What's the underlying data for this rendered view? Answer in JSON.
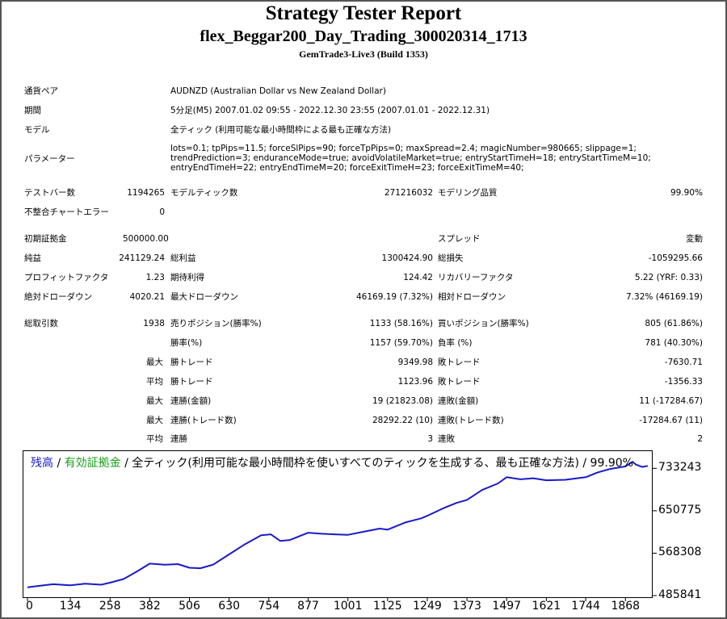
{
  "header": {
    "title": "Strategy Tester Report",
    "subtitle": "flex_Beggar200_Day_Trading_300020314_1713",
    "server": "GemTrade3-Live3 (Build 1353)"
  },
  "info": {
    "pair_label": "通貨ペア",
    "pair_value": "AUDNZD (Australian Dollar vs New Zealand Dollar)",
    "period_label": "期間",
    "period_value": "5分足(M5) 2007.01.02 09:55 - 2022.12.30 23:55 (2007.01.01 - 2022.12.31)",
    "model_label": "モデル",
    "model_value": "全ティック (利用可能な最小時間枠による最も正確な方法)",
    "params_label": "パラメーター",
    "params_value": "lots=0.1; tpPips=11.5; forceSlPips=90; forceTpPips=0; maxSpread=2.4; magicNumber=980665; slippage=1; trendPrediction=3; enduranceMode=true; avoidVolatileMarket=true; entryStartTimeH=18; entryStartTimeM=10; entryEndTimeH=22; entryEndTimeM=20; forceExitTimeH=23; forceExitTimeM=40;"
  },
  "stats": {
    "bars_label": "テストバー数",
    "bars_value": "1194265",
    "ticks_label": "モデルティック数",
    "ticks_value": "271216032",
    "quality_label": "モデリング品質",
    "quality_value": "99.90%",
    "mismatch_label": "不整合チャートエラー",
    "mismatch_value": "0",
    "deposit_label": "初期証拠金",
    "deposit_value": "500000.00",
    "spread_label": "スプレッド",
    "spread_value": "変動",
    "net_label": "純益",
    "net_value": "241129.24",
    "gross_profit_label": "総利益",
    "gross_profit_value": "1300424.90",
    "gross_loss_label": "総損失",
    "gross_loss_value": "-1059295.66",
    "pf_label": "プロフィットファクタ",
    "pf_value": "1.23",
    "expected_label": "期待利得",
    "expected_value": "124.42",
    "recovery_label": "リカバリーファクタ",
    "recovery_value": "5.22 (YRF: 0.33)",
    "abs_dd_label": "絶対ドローダウン",
    "abs_dd_value": "4020.21",
    "max_dd_label": "最大ドローダウン",
    "max_dd_value": "46169.19 (7.32%)",
    "rel_dd_label": "相対ドローダウン",
    "rel_dd_value": "7.32% (46169.19)",
    "total_trades_label": "総取引数",
    "total_trades_value": "1938",
    "short_label": "売りポジション(勝率%)",
    "short_value": "1133 (58.16%)",
    "long_label": "買いポジション(勝率%)",
    "long_value": "805 (61.86%)",
    "win_rate_label": "勝率(%)",
    "win_rate_value": "1157 (59.70%)",
    "loss_rate_label": "負率 (%)",
    "loss_rate_value": "781 (40.30%)",
    "max_prefix": "最大",
    "avg_prefix": "平均",
    "largest_win_label": "勝トレード",
    "largest_win_value": "9349.98",
    "largest_loss_label": "敗トレード",
    "largest_loss_value": "-7630.71",
    "avg_win_label": "勝トレード",
    "avg_win_value": "1123.96",
    "avg_loss_label": "敗トレード",
    "avg_loss_value": "-1356.33",
    "consec_wins_amt_label": "連勝(金額)",
    "consec_wins_amt_value": "19 (21823.08)",
    "consec_losses_amt_label": "連敗(金額)",
    "consec_losses_amt_value": "11 (-17284.67)",
    "consec_wins_cnt_label": "連勝(トレード数)",
    "consec_wins_cnt_value": "28292.22 (10)",
    "consec_losses_cnt_label": "連敗(トレード数)",
    "consec_losses_cnt_value": "-17284.67 (11)",
    "avg_consec_wins_label": "連勝",
    "avg_consec_wins_value": "3",
    "avg_consec_losses_label": "連敗",
    "avg_consec_losses_value": "2"
  },
  "legend": {
    "balance": "残高",
    "sep1": " / ",
    "equity": "有効証拠金",
    "rest": " / 全ティック(利用可能な最小時間枠を使いすべてのティックを生成する、最も正確な方法) / 99.90%"
  },
  "chart_data": {
    "type": "line",
    "series": [
      {
        "name": "残高",
        "x": [
          0,
          40,
          80,
          134,
          180,
          230,
          258,
          300,
          340,
          382,
          430,
          470,
          506,
          540,
          580,
          630,
          680,
          730,
          760,
          790,
          820,
          877,
          920,
          960,
          1001,
          1050,
          1100,
          1125,
          1180,
          1230,
          1249,
          1300,
          1340,
          1373,
          1420,
          1470,
          1497,
          1540,
          1580,
          1621,
          1680,
          1744,
          1780,
          1820,
          1868,
          1890,
          1900,
          1920,
          1938
        ],
        "y": [
          502000,
          505000,
          508000,
          506000,
          509000,
          507000,
          511000,
          518000,
          532000,
          548000,
          546000,
          547000,
          540000,
          539000,
          546000,
          566000,
          586000,
          603000,
          605000,
          592000,
          594000,
          608000,
          606000,
          605000,
          604000,
          610000,
          616000,
          614000,
          628000,
          636000,
          641000,
          656000,
          666000,
          672000,
          691000,
          704000,
          716000,
          712000,
          714000,
          710000,
          711000,
          716000,
          725000,
          732000,
          737000,
          746000,
          741000,
          736000,
          738000
        ],
        "color": "#1a1ac8"
      }
    ],
    "yticks": [
      733243,
      650775,
      568308,
      485841
    ],
    "xticks": [
      0,
      134,
      258,
      382,
      506,
      630,
      754,
      877,
      1001,
      1125,
      1249,
      1373,
      1497,
      1621,
      1744,
      1868
    ],
    "xlim": [
      0,
      1938
    ],
    "ylim": [
      485841,
      762000
    ]
  }
}
